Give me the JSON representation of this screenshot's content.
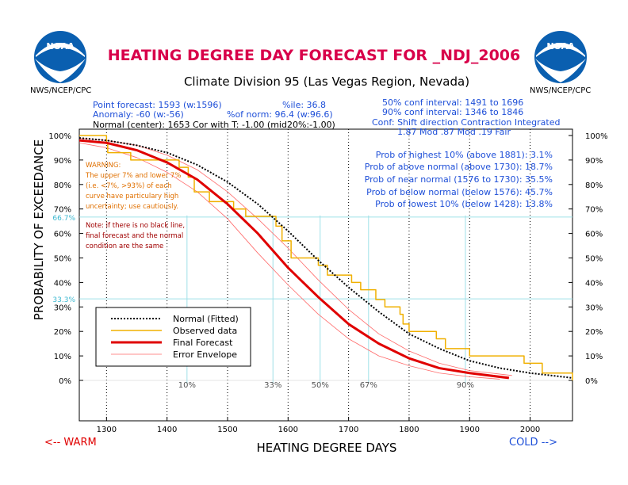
{
  "header": {
    "title": "HEATING DEGREE DAY FORECAST FOR _NDJ_2006",
    "subtitle": "Climate Division 95 (Las Vegas Region, Nevada)",
    "logo_text": "NOAA",
    "agency_left": "NWS/NCEP/CPC",
    "agency_right": "NWS/NCEP/CPC"
  },
  "info": {
    "left": [
      "Point forecast: 1593 (w:1596)",
      "Anomaly: -60 (w:-56)",
      "Normal (center): 1653 Cor with T: -1.00 (mid20%:-1.00)"
    ],
    "middle": [
      "%ile: 36.8",
      "%of norm:  96.4 (w:96.6)"
    ],
    "right": [
      "50% conf interval: 1491 to 1696",
      "90% conf interval: 1346 to 1846",
      "Conf: Shift direction  Contraction  Integrated",
      "1.87 Mod         .87 Mod      .19 Fair"
    ],
    "probs": [
      "Prob of highest 10% (above 1881):  3.1%",
      "Prob of above normal (above 1730): 18.7%",
      "Prob of near normal (1576 to 1730): 35.5%",
      "Prob of below normal (below 1576): 45.7%",
      "Prob of lowest 10% (below 1428): 13.8%"
    ]
  },
  "notes": {
    "warning": [
      "WARNING:",
      "The upper 7% and lower 7%",
      "(i.e. <7%, >93%) of each",
      "curve have particulary high",
      "uncertainty; use cautiously."
    ],
    "note": [
      "Note: if there is no black line,",
      "final forecast and  the normal",
      "condition are the same"
    ]
  },
  "footer": {
    "warm_label": "<-- WARM",
    "cold_label": "COLD -->"
  },
  "colors": {
    "title": "#d8004a",
    "blue_text": "#1e4fd8",
    "warning": "#e07000",
    "note": "#a00000",
    "normal": "#000000",
    "observed": "#f0b000",
    "forecast": "#e00000",
    "envelope": "#ff6a6a",
    "guide": "#9fe0e8"
  },
  "chart_data": {
    "type": "line",
    "title": "HEATING DEGREE DAY FORECAST FOR _NDJ_2006",
    "xlabel": "HEATING DEGREE DAYS",
    "ylabel": "PROBABILITY OF EXCEEDANCE",
    "xlim": [
      1255,
      2070
    ],
    "ylim": [
      -15,
      100
    ],
    "x_ticks": [
      1300,
      1400,
      1500,
      1600,
      1700,
      1800,
      1900,
      2000
    ],
    "y_ticks": [
      "0%",
      "10%",
      "20%",
      "30%",
      "40%",
      "50%",
      "60%",
      "70%",
      "80%",
      "90%",
      "100%"
    ],
    "y_special": [
      {
        "label": "66.7%",
        "value": 66.7
      },
      {
        "label": "33.3%",
        "value": 33.3
      }
    ],
    "percentile_markers": [
      {
        "label": "10%",
        "x": 1433
      },
      {
        "label": "33%",
        "x": 1575
      },
      {
        "label": "50%",
        "x": 1653
      },
      {
        "label": "67%",
        "x": 1733
      },
      {
        "label": "90%",
        "x": 1893
      }
    ],
    "vertical_dotted_lines": [
      1300,
      1400,
      1500,
      1600,
      1700,
      1800,
      1900,
      2000
    ],
    "grid": false,
    "legend_position": "bottom-left",
    "series": [
      {
        "name": "Normal (Fitted)",
        "style": "dotted",
        "x": [
          1255,
          1300,
          1350,
          1400,
          1450,
          1500,
          1550,
          1600,
          1650,
          1700,
          1750,
          1800,
          1850,
          1900,
          1950,
          2000,
          2070
        ],
        "y": [
          99,
          98,
          96,
          93,
          88,
          81,
          72,
          61,
          49,
          38,
          28,
          19,
          13,
          8,
          5,
          3,
          1
        ]
      },
      {
        "name": "Observed data",
        "style": "step",
        "x": [
          1255,
          1285,
          1300,
          1302,
          1340,
          1390,
          1420,
          1435,
          1445,
          1470,
          1500,
          1510,
          1530,
          1555,
          1580,
          1590,
          1605,
          1625,
          1650,
          1665,
          1700,
          1705,
          1720,
          1745,
          1760,
          1785,
          1790,
          1800,
          1830,
          1845,
          1860,
          1880,
          1900,
          1920,
          1940,
          1950,
          1990,
          2005,
          2020,
          2040,
          2070
        ],
        "y": [
          100,
          100,
          97,
          93,
          90,
          90,
          87,
          83,
          77,
          73,
          73,
          70,
          67,
          67,
          63,
          57,
          50,
          50,
          47,
          43,
          43,
          40,
          37,
          33,
          30,
          27,
          23,
          20,
          20,
          17,
          13,
          13,
          10,
          10,
          10,
          10,
          7,
          7,
          3,
          3,
          0
        ]
      },
      {
        "name": "Final Forecast",
        "style": "solid-thick",
        "x": [
          1255,
          1300,
          1350,
          1400,
          1450,
          1500,
          1550,
          1600,
          1650,
          1700,
          1750,
          1800,
          1850,
          1900,
          1965
        ],
        "y": [
          98,
          97,
          94,
          89,
          82,
          72,
          60,
          46,
          34,
          23,
          15,
          9,
          5,
          3,
          1
        ]
      },
      {
        "name": "Error Envelope",
        "style": "thin",
        "x": [
          1255,
          1300,
          1350,
          1400,
          1450,
          1500,
          1550,
          1600,
          1650,
          1700,
          1750,
          1800,
          1850,
          1900,
          1970
        ],
        "y": [
          99,
          98,
          96,
          92,
          86,
          77,
          66,
          54,
          41,
          29,
          19,
          12,
          7,
          4,
          2
        ]
      },
      {
        "name": "",
        "style": "thin",
        "x": [
          1255,
          1300,
          1350,
          1400,
          1450,
          1500,
          1550,
          1600,
          1650,
          1700,
          1750,
          1800,
          1850,
          1900,
          1950
        ],
        "y": [
          97,
          95,
          91,
          85,
          77,
          66,
          52,
          39,
          27,
          17,
          10,
          6,
          3,
          1.5,
          0.5
        ]
      }
    ]
  }
}
